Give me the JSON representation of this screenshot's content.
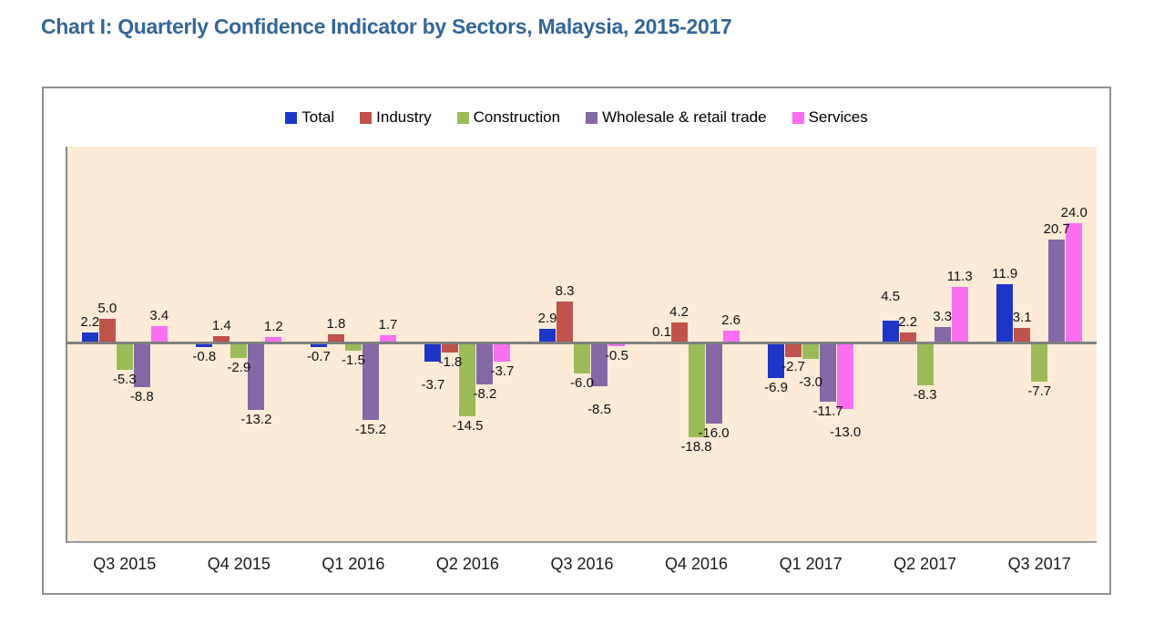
{
  "page": {
    "title": "Chart I: Quarterly Confidence Indicator by Sectors, Malaysia, 2015-2017"
  },
  "chart_data": {
    "type": "bar",
    "title": "Chart I: Quarterly Confidence Indicator by Sectors, Malaysia, 2015-2017",
    "categories": [
      "Q3 2015",
      "Q4 2015",
      "Q1 2016",
      "Q2 2016",
      "Q3 2016",
      "Q4 2016",
      "Q1 2017",
      "Q2 2017",
      "Q3 2017"
    ],
    "series": [
      {
        "name": "Total",
        "color": "#1D36C8",
        "values": [
          2.2,
          -0.8,
          -0.7,
          -3.7,
          2.9,
          0.1,
          -6.9,
          4.5,
          11.9
        ]
      },
      {
        "name": "Industry",
        "color": "#C0534B",
        "values": [
          5.0,
          1.4,
          1.8,
          -1.8,
          8.3,
          4.2,
          -2.7,
          2.2,
          3.1
        ]
      },
      {
        "name": "Construction",
        "color": "#9BBB59",
        "values": [
          -5.3,
          -2.9,
          -1.5,
          -14.5,
          -6.0,
          -18.8,
          -3.0,
          -8.3,
          -7.7
        ]
      },
      {
        "name": "Wholesale & retail trade",
        "color": "#8468A6",
        "values": [
          -8.8,
          -13.2,
          -15.2,
          -8.2,
          -8.5,
          -16.0,
          -11.7,
          3.3,
          20.7
        ]
      },
      {
        "name": "Services",
        "color": "#F96FF0",
        "values": [
          3.4,
          1.2,
          1.7,
          -3.7,
          -0.5,
          2.6,
          -13.0,
          11.3,
          24.0
        ]
      }
    ],
    "xlabel": "",
    "ylabel": "",
    "ylim": [
      -40,
      40
    ],
    "grid": false,
    "legend_position": "top",
    "value_labels": true,
    "value_label_format": "0.0",
    "plot_bg": "#FDEBD7",
    "axis_color": "#808080",
    "title_color": "#336699",
    "label_color": "#111111"
  }
}
